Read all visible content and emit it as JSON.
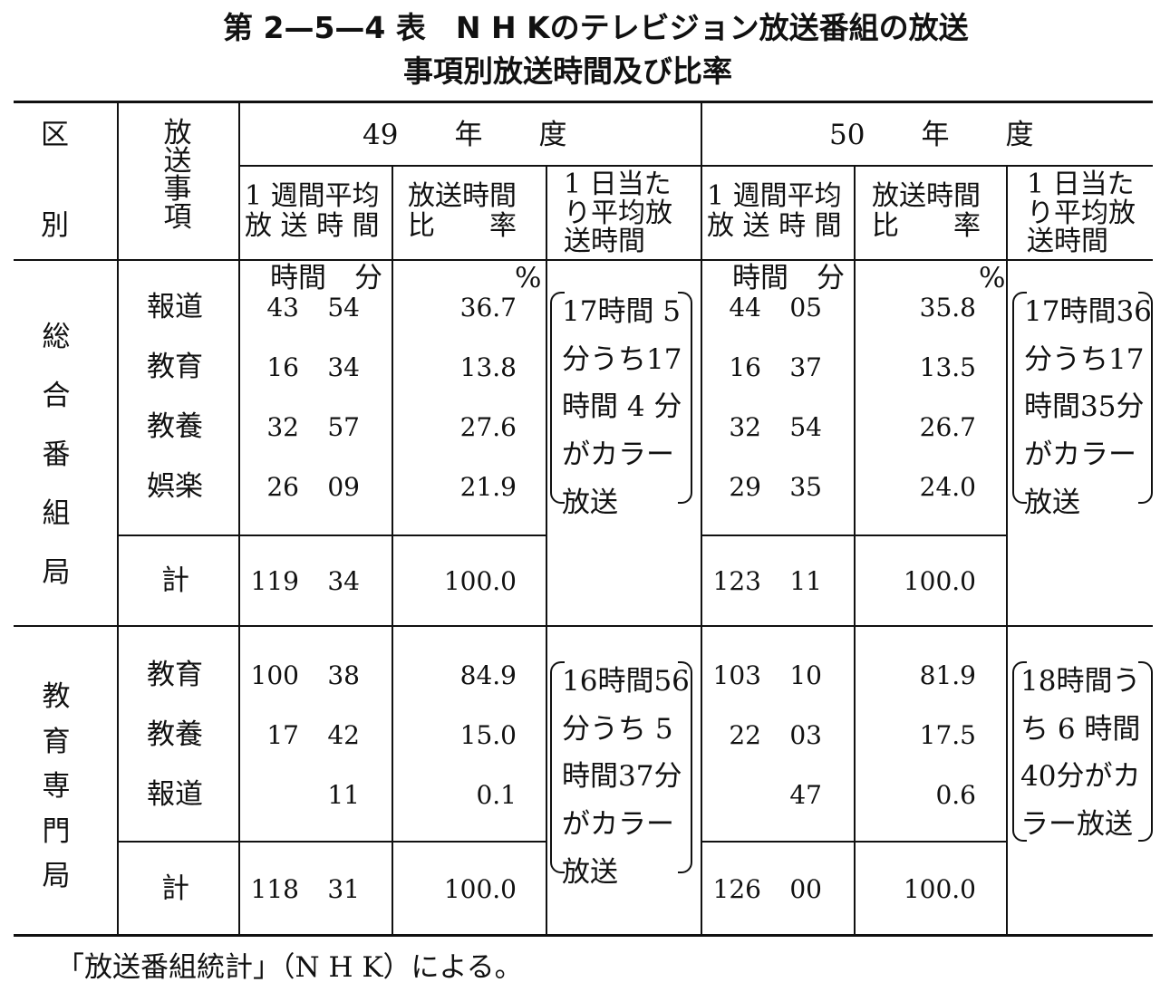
{
  "title_line1": "第 2—5—4 表　N H Kのテレビジョン放送番組の放送",
  "title_line2": "事項別放送時間及び比率",
  "header": {
    "kubun": [
      "区",
      "別"
    ],
    "housou_jikou": "放送事項",
    "year49": "49　　年　　度",
    "year50": "50　　年　　度",
    "weekly": [
      "1 週間平均",
      "放 送 時 間"
    ],
    "ratio": [
      "放送時間",
      "比　　率"
    ],
    "daily": [
      "1 日当た",
      "り平均放",
      "送時間"
    ],
    "unit_time": "時間　分",
    "unit_pct": "%"
  },
  "sections": [
    {
      "name": "総合番組局",
      "rows": [
        {
          "item": "報道",
          "h49": "43",
          "m49": "54",
          "p49": "36.7",
          "h50": "44",
          "m50": "05",
          "p50": "35.8"
        },
        {
          "item": "教育",
          "h49": "16",
          "m49": "34",
          "p49": "13.8",
          "h50": "16",
          "m50": "37",
          "p50": "13.5"
        },
        {
          "item": "教養",
          "h49": "32",
          "m49": "57",
          "p49": "27.6",
          "h50": "32",
          "m50": "54",
          "p50": "26.7"
        },
        {
          "item": "娯楽",
          "h49": "26",
          "m49": "09",
          "p49": "21.9",
          "h50": "29",
          "m50": "35",
          "p50": "24.0"
        }
      ],
      "total": {
        "item": "計",
        "h49": "119",
        "m49": "34",
        "p49": "100.0",
        "h50": "123",
        "m50": "11",
        "p50": "100.0"
      },
      "note49": [
        "17時間 5",
        "分うち17",
        "時間 4 分",
        "がカラー",
        "放送"
      ],
      "note50": [
        "17時間36",
        "分うち17",
        "時間35分",
        "がカラー",
        "放送"
      ]
    },
    {
      "name": "教育専門局",
      "rows": [
        {
          "item": "教育",
          "h49": "100",
          "m49": "38",
          "p49": "84.9",
          "h50": "103",
          "m50": "10",
          "p50": "81.9"
        },
        {
          "item": "教養",
          "h49": "17",
          "m49": "42",
          "p49": "15.0",
          "h50": "22",
          "m50": "03",
          "p50": "17.5"
        },
        {
          "item": "報道",
          "h49": "",
          "m49": "11",
          "p49": "0.1",
          "h50": "",
          "m50": "47",
          "p50": "0.6"
        }
      ],
      "total": {
        "item": "計",
        "h49": "118",
        "m49": "31",
        "p49": "100.0",
        "h50": "126",
        "m50": "00",
        "p50": "100.0"
      },
      "note49": [
        "16時間56",
        "分うち 5",
        "時間37分",
        "がカラー",
        "放送"
      ],
      "note50": [
        "18時間う",
        "ち 6 時間",
        "40分がカ",
        "ラー放送"
      ]
    }
  ],
  "source": "「放送番組統計」（N H K）による。"
}
